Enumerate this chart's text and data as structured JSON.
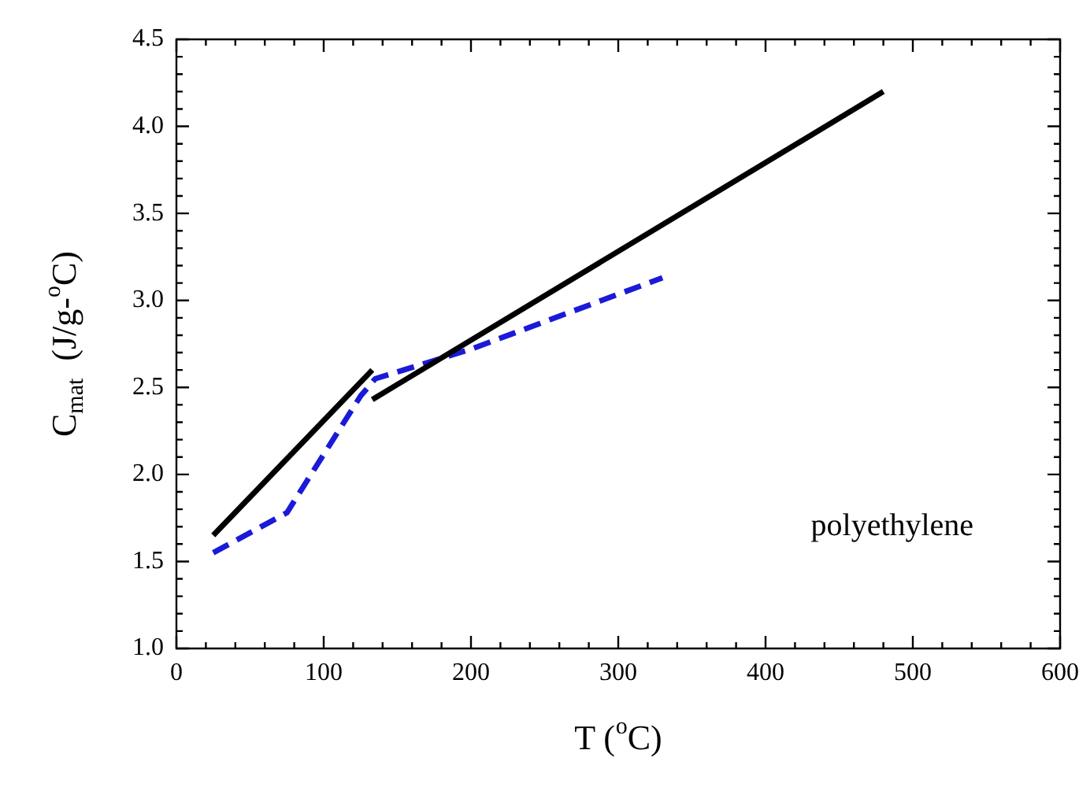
{
  "chart_data": {
    "type": "line",
    "xlabel": "T ($^{o}$C)",
    "ylabel": "C$_{mat}$  (J/g-$^{o}$C)",
    "xlim": [
      0,
      600
    ],
    "xticks": [
      0,
      100,
      200,
      300,
      400,
      500,
      600
    ],
    "ylim": [
      1.0,
      4.5
    ],
    "yticks": [
      {
        "value": 1.0,
        "label": "1.0"
      },
      {
        "value": 1.5,
        "label": "1.5"
      },
      {
        "value": 2.0,
        "label": "2.0"
      },
      {
        "value": 2.5,
        "label": "2.5"
      },
      {
        "value": 3.0,
        "label": "3.0"
      },
      {
        "value": 3.5,
        "label": "3.5"
      },
      {
        "value": 4.0,
        "label": "4.0"
      },
      {
        "value": 4.5,
        "label": "4.5"
      }
    ],
    "series": [
      {
        "color": "#000000",
        "line_style": "solid",
        "x": [
          25,
          133
        ],
        "values": [
          1.65,
          2.6
        ]
      },
      {
        "color": "#000000",
        "line_style": "solid",
        "x": [
          133,
          480
        ],
        "values": [
          2.43,
          4.2
        ]
      },
      {
        "color": "#1a1ad8",
        "line_style": "dashed",
        "x": [
          25,
          75,
          125,
          135,
          200,
          330
        ],
        "values": [
          1.55,
          1.78,
          2.45,
          2.55,
          2.72,
          3.13
        ]
      }
    ],
    "annotations": [
      "polyethylene"
    ],
    "marker": "none",
    "legend": false,
    "grid": false
  }
}
